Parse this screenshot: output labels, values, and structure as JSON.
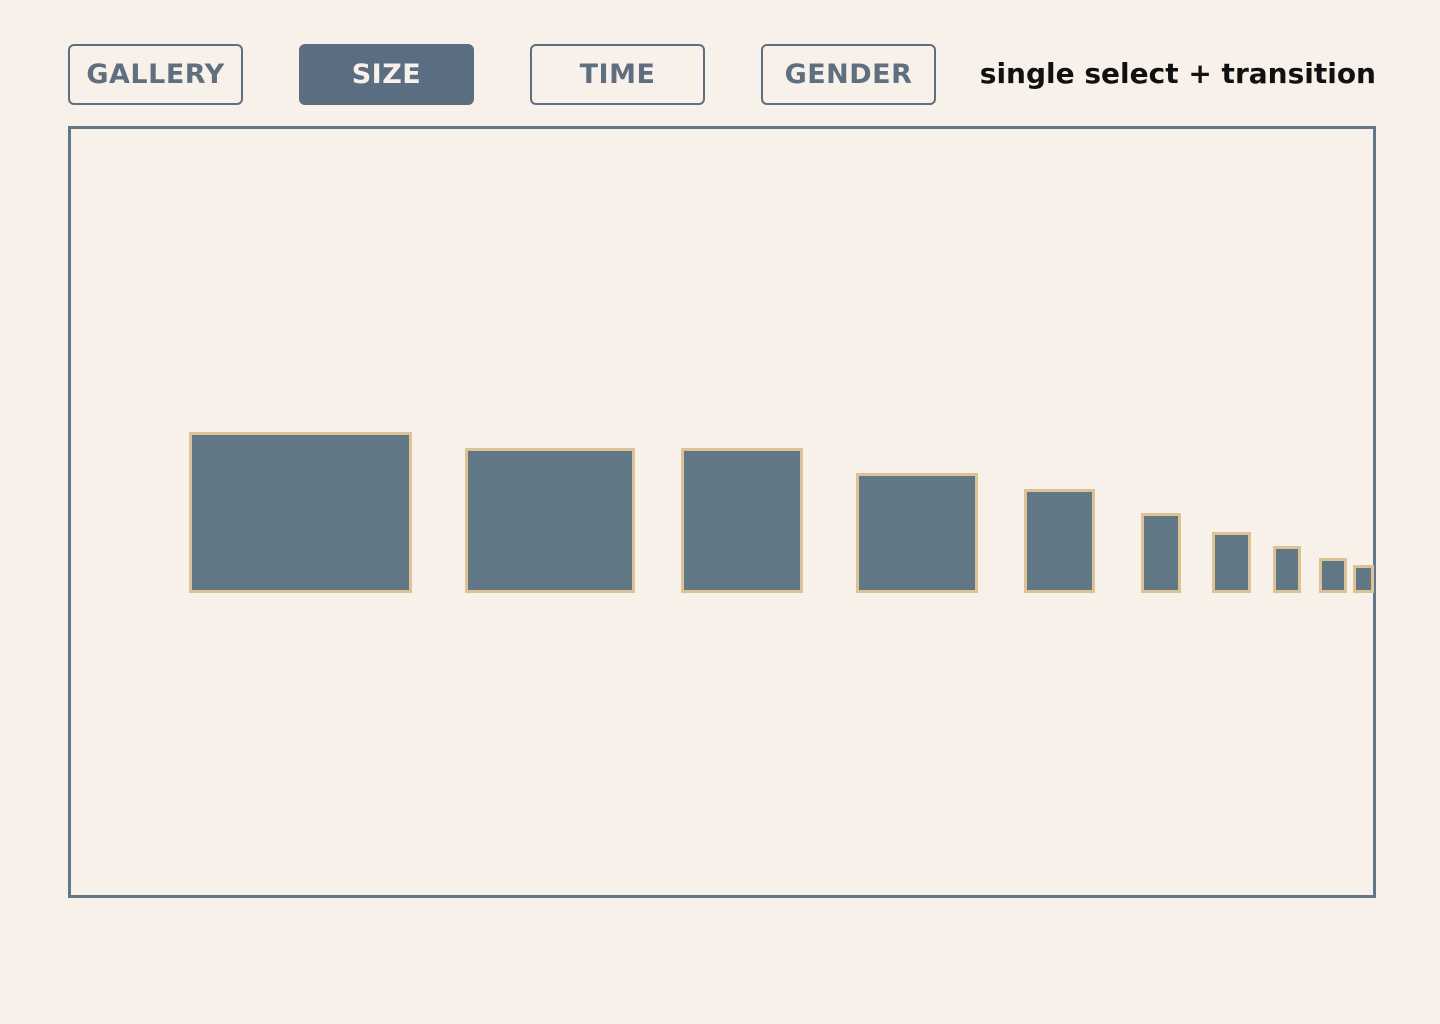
{
  "toolbar": {
    "buttons": [
      {
        "label": "GALLERY",
        "active": false
      },
      {
        "label": "SIZE",
        "active": true
      },
      {
        "label": "TIME",
        "active": false
      },
      {
        "label": "GENDER",
        "active": false
      }
    ],
    "mode_label": "single select + transition"
  },
  "colors": {
    "background": "#f8f1ea",
    "accent": "#5b6e81",
    "tile_fill": "#627786",
    "tile_border": "#dcc396",
    "text": "#111111"
  },
  "selected_view": "SIZE"
}
